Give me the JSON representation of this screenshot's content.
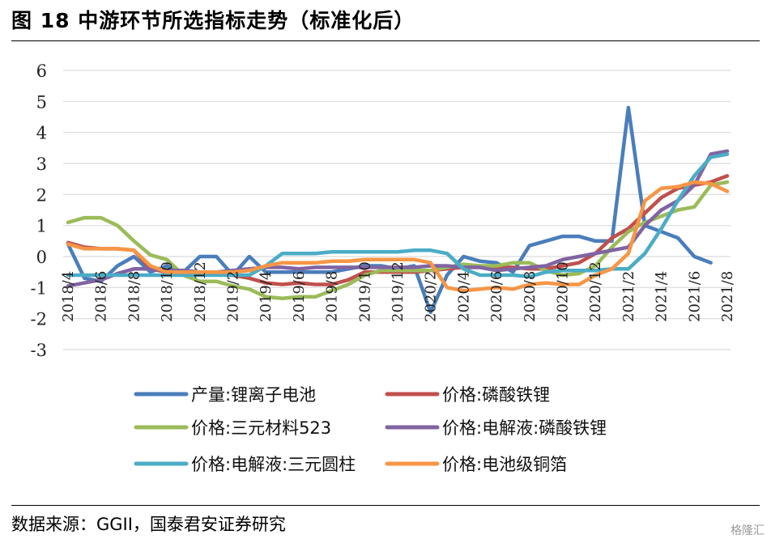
{
  "figure": {
    "title": "图 18  中游环节所选指标走势（标准化后）",
    "source": "数据来源：GGII，国泰君安证券研究",
    "watermark": "格隆汇"
  },
  "chart_data": {
    "type": "line",
    "ylim": [
      -3,
      6
    ],
    "yticks": [
      "6",
      "5",
      "4",
      "3",
      "2",
      "1",
      "0",
      "-1",
      "-2",
      "-3"
    ],
    "x": [
      "2018/4",
      "2018/5",
      "2018/6",
      "2018/7",
      "2018/8",
      "2018/9",
      "2018/10",
      "2018/11",
      "2018/12",
      "2019/1",
      "2019/2",
      "2019/3",
      "2019/4",
      "2019/5",
      "2019/6",
      "2019/7",
      "2019/8",
      "2019/9",
      "2019/10",
      "2019/11",
      "2019/12",
      "2020/1",
      "2020/2",
      "2020/3",
      "2020/4",
      "2020/5",
      "2020/6",
      "2020/7",
      "2020/8",
      "2020/9",
      "2020/10",
      "2020/11",
      "2020/12",
      "2021/1",
      "2021/2",
      "2021/3",
      "2021/4",
      "2021/5",
      "2021/6",
      "2021/7",
      "2021/8"
    ],
    "xtick_labels": [
      "2018/4",
      "2018/6",
      "2018/8",
      "2018/10",
      "2018/12",
      "2019/2",
      "2019/4",
      "2019/6",
      "2019/8",
      "2019/10",
      "2019/12",
      "2020/2",
      "2020/4",
      "2020/6",
      "2020/8",
      "2020/10",
      "2020/12",
      "2021/2",
      "2021/4",
      "2021/6",
      "2021/8"
    ],
    "legend_position": "bottom",
    "grid": "horizontal",
    "series": [
      {
        "name": "产量:锂离子电池",
        "color": "#4a7ebb",
        "values": [
          0.4,
          -0.7,
          -0.8,
          -0.3,
          0.0,
          -0.5,
          -0.3,
          -0.5,
          0.0,
          0.0,
          -0.6,
          0.0,
          -0.5,
          -0.5,
          -0.5,
          -0.5,
          -0.5,
          -0.4,
          -0.3,
          -0.3,
          -0.4,
          -0.3,
          -1.8,
          -0.6,
          0.0,
          -0.15,
          -0.2,
          -0.5,
          0.35,
          0.5,
          0.65,
          0.65,
          0.5,
          0.5,
          4.8,
          1.0,
          0.8,
          0.6,
          0.0,
          -0.2,
          null
        ]
      },
      {
        "name": "价格:磷酸铁锂",
        "color": "#c0504d",
        "values": [
          0.45,
          0.3,
          0.25,
          0.25,
          0.2,
          -0.4,
          -0.5,
          -0.5,
          -0.5,
          -0.5,
          -0.6,
          -0.7,
          -0.85,
          -0.9,
          -0.85,
          -0.9,
          -0.9,
          -0.75,
          -0.5,
          -0.5,
          -0.5,
          -0.5,
          -0.45,
          -0.4,
          -0.35,
          -0.35,
          -0.35,
          -0.35,
          -0.4,
          -0.4,
          -0.3,
          -0.2,
          0.1,
          0.6,
          0.9,
          1.4,
          1.9,
          2.2,
          2.3,
          2.4,
          2.6
        ]
      },
      {
        "name": "价格:三元材料523",
        "color": "#9bbb59",
        "values": [
          1.1,
          1.25,
          1.25,
          1.0,
          0.5,
          0.05,
          -0.1,
          -0.6,
          -0.8,
          -0.8,
          -0.95,
          -1.05,
          -1.3,
          -1.35,
          -1.3,
          -1.3,
          -1.1,
          -0.9,
          -0.6,
          -0.45,
          -0.45,
          -0.45,
          -0.45,
          -0.35,
          -0.25,
          -0.3,
          -0.3,
          -0.2,
          -0.2,
          -0.45,
          -0.6,
          -0.55,
          -0.3,
          0.3,
          0.8,
          1.1,
          1.3,
          1.5,
          1.6,
          2.3,
          2.4
        ]
      },
      {
        "name": "价格:电解液:磷酸铁锂",
        "color": "#8064a2",
        "values": [
          -0.95,
          -0.85,
          -0.75,
          -0.55,
          -0.4,
          -0.4,
          -0.45,
          -0.45,
          -0.5,
          -0.5,
          -0.45,
          -0.4,
          -0.35,
          -0.35,
          -0.4,
          -0.35,
          -0.35,
          -0.35,
          -0.35,
          -0.35,
          -0.35,
          -0.35,
          -0.3,
          -0.3,
          -0.35,
          -0.35,
          -0.45,
          -0.4,
          -0.35,
          -0.3,
          -0.1,
          0.0,
          0.1,
          0.2,
          0.3,
          1.0,
          1.5,
          1.8,
          2.3,
          3.3,
          3.4
        ]
      },
      {
        "name": "价格:电解液:三元圆柱",
        "color": "#4bacc6",
        "values": [
          -0.6,
          -0.6,
          -0.6,
          -0.6,
          -0.6,
          -0.6,
          -0.6,
          -0.6,
          -0.6,
          -0.6,
          -0.6,
          -0.6,
          -0.3,
          0.1,
          0.1,
          0.1,
          0.15,
          0.15,
          0.15,
          0.15,
          0.15,
          0.2,
          0.2,
          0.1,
          -0.4,
          -0.6,
          -0.6,
          -0.6,
          -0.65,
          -0.5,
          -0.45,
          -0.45,
          -0.45,
          -0.4,
          -0.4,
          0.1,
          0.9,
          1.8,
          2.6,
          3.2,
          3.3
        ]
      },
      {
        "name": "价格:电池级铜箔",
        "color": "#f79646",
        "values": [
          0.4,
          0.25,
          0.25,
          0.25,
          0.2,
          -0.3,
          -0.5,
          -0.5,
          -0.5,
          -0.5,
          -0.5,
          -0.45,
          -0.3,
          -0.2,
          -0.2,
          -0.2,
          -0.15,
          -0.15,
          -0.1,
          -0.1,
          -0.1,
          -0.1,
          -0.2,
          -1.0,
          -1.1,
          -1.05,
          -1.0,
          -1.05,
          -0.9,
          -0.85,
          -0.9,
          -0.9,
          -0.6,
          -0.4,
          0.1,
          1.8,
          2.2,
          2.25,
          2.4,
          2.35,
          2.1
        ]
      }
    ]
  }
}
